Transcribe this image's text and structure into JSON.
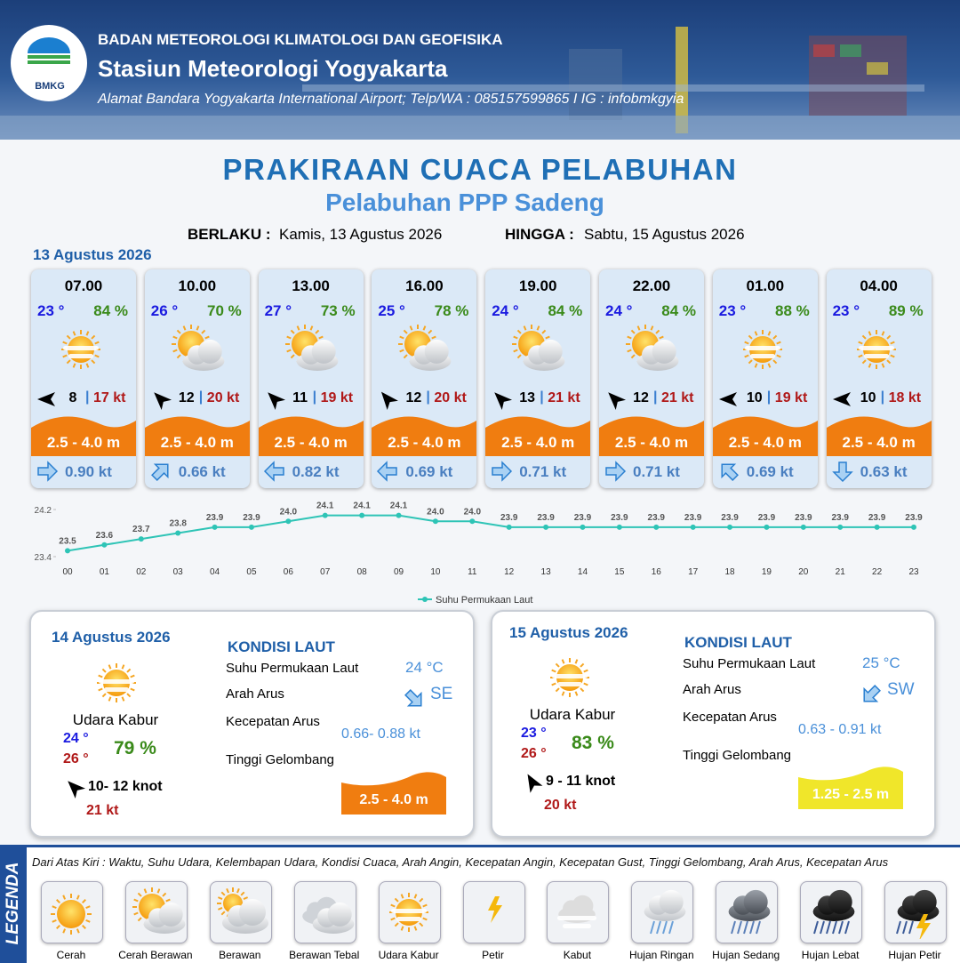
{
  "header": {
    "logo": "BMKG",
    "agency": "BADAN METEOROLOGI KLIMATOLOGI DAN GEOFISIKA",
    "station": "Stasiun Meteorologi Yogyakarta",
    "address": "Alamat Bandara Yogyakarta International Airport; Telp/WA : 085157599865 I IG : infobmkgyia"
  },
  "title": "PRAKIRAAN CUACA PELABUHAN",
  "subtitle": "Pelabuhan PPP Sadeng",
  "validity": {
    "from_label": "BERLAKU :",
    "from": "Kamis, 13 Agustus 2026",
    "to_label": "HINGGA :",
    "to": "Sabtu, 15 Agustus 2026"
  },
  "day1": {
    "date": "13 Agustus 2026",
    "hours": [
      {
        "time": "07.00",
        "temp": "23 °",
        "humidity": "84 %",
        "wind_arrow": 270,
        "wind_speed": "8",
        "gust": "17 kt",
        "wave": "2.5 - 4.0 m",
        "current_arrow": 90,
        "current_speed": "0.90 kt"
      },
      {
        "time": "10.00",
        "temp": "26 °",
        "humidity": "70 %",
        "wind_arrow": 315,
        "wind_speed": "12",
        "gust": "20 kt",
        "wave": "2.5 - 4.0 m",
        "current_arrow": 45,
        "current_speed": "0.66 kt"
      },
      {
        "time": "13.00",
        "temp": "27 °",
        "humidity": "73 %",
        "wind_arrow": 315,
        "wind_speed": "11",
        "gust": "19 kt",
        "wave": "2.5 - 4.0 m",
        "current_arrow": 270,
        "current_speed": "0.82 kt"
      },
      {
        "time": "16.00",
        "temp": "25 °",
        "humidity": "78 %",
        "wind_arrow": 320,
        "wind_speed": "12",
        "gust": "20 kt",
        "wave": "2.5 - 4.0 m",
        "current_arrow": 270,
        "current_speed": "0.69 kt"
      },
      {
        "time": "19.00",
        "temp": "24 °",
        "humidity": "84 %",
        "wind_arrow": 315,
        "wind_speed": "13",
        "gust": "21 kt",
        "wave": "2.5 - 4.0 m",
        "current_arrow": 90,
        "current_speed": "0.71 kt"
      },
      {
        "time": "22.00",
        "temp": "24 °",
        "humidity": "84 %",
        "wind_arrow": 315,
        "wind_speed": "12",
        "gust": "21 kt",
        "wave": "2.5 - 4.0 m",
        "current_arrow": 90,
        "current_speed": "0.71 kt"
      },
      {
        "time": "01.00",
        "temp": "23 °",
        "humidity": "88 %",
        "wind_arrow": 270,
        "wind_speed": "10",
        "gust": "19 kt",
        "wave": "2.5 - 4.0 m",
        "current_arrow": 315,
        "current_speed": "0.69 kt"
      },
      {
        "time": "04.00",
        "temp": "23 °",
        "humidity": "89 %",
        "wind_arrow": 270,
        "wind_speed": "10",
        "gust": "18 kt",
        "wave": "2.5 - 4.0 m",
        "current_arrow": 180,
        "current_speed": "0.63 kt"
      }
    ]
  },
  "chart_data": {
    "type": "line",
    "categories": [
      "00",
      "01",
      "02",
      "03",
      "04",
      "05",
      "06",
      "07",
      "08",
      "09",
      "10",
      "11",
      "12",
      "13",
      "14",
      "15",
      "16",
      "17",
      "18",
      "19",
      "20",
      "21",
      "22",
      "23"
    ],
    "series": [
      {
        "name": "Suhu Permukaan Laut",
        "color": "#2ec4b6",
        "values": [
          23.5,
          23.6,
          23.7,
          23.8,
          23.9,
          23.9,
          24.0,
          24.1,
          24.1,
          24.1,
          24.0,
          24.0,
          23.9,
          23.9,
          23.9,
          23.9,
          23.9,
          23.9,
          23.9,
          23.9,
          23.9,
          23.9,
          23.9,
          23.9
        ],
        "value_labels": [
          "23.5",
          "23.6",
          "23.7",
          "23.8",
          "23.9",
          "23.9",
          "24.0",
          "24.1",
          "24.1",
          "24.1",
          "24.0",
          "24.0",
          "23.9",
          "23.9",
          "23.9",
          "23.9",
          "23.9",
          "23.9",
          "23.9",
          "23.9",
          "23.9",
          "23.9",
          "23.9",
          "23.9"
        ]
      }
    ],
    "ylim": [
      23.4,
      24.2
    ],
    "yticks": [
      23.4,
      24.2
    ],
    "legend": "bottom"
  },
  "day2": {
    "date": "14 Agustus 2026",
    "condition": "Udara Kabur",
    "temp_min": "24 °",
    "temp_max": "26 °",
    "humidity": "79 %",
    "wind_arrow": 315,
    "wind": "10- 12 knot",
    "gust": "21 kt",
    "sea_title": "KONDISI LAUT",
    "sst_label": "Suhu Permukaan Laut",
    "sst": "24 °C",
    "current_dir_label": "Arah Arus",
    "current_arrow": 135,
    "current_dir": "SE",
    "current_speed_label": "Kecepatan Arus",
    "current_speed": "0.66- 0.88 kt",
    "wave_label": "Tinggi Gelombang",
    "wave": "2.5 - 4.0 m"
  },
  "day3": {
    "date": "15 Agustus 2026",
    "condition": "Udara Kabur",
    "temp_min": "23 °",
    "temp_max": "26 °",
    "humidity": "83 %",
    "wind_arrow": 330,
    "wind": "9  - 11 knot",
    "gust": "20 kt",
    "sea_title": "KONDISI LAUT",
    "sst_label": "Suhu Permukaan Laut",
    "sst": "25 °C",
    "current_dir_label": "Arah Arus",
    "current_arrow": 225,
    "current_dir": "SW",
    "current_speed_label": "Kecepatan Arus",
    "current_speed": "0.63 - 0.91 kt",
    "wave_label": "Tinggi Gelombang",
    "wave": "1.25 - 2.5 m"
  },
  "legend": {
    "title": "LEGENDA",
    "description": "Dari Atas Kiri : Waktu, Suhu Udara, Kelembapan Udara, Kondisi Cuaca, Arah Angin, Kecepatan Angin, Kecepatan Gust, Tinggi Gelombang, Arah Arus, Kecepatan Arus",
    "items": [
      "Cerah",
      "Cerah Berawan",
      "Berawan",
      "Berawan Tebal",
      "Udara Kabur",
      "Petir",
      "Kabut",
      "Hujan Ringan",
      "Hujan Sedang",
      "Hujan Lebat",
      "Hujan Petir"
    ]
  }
}
